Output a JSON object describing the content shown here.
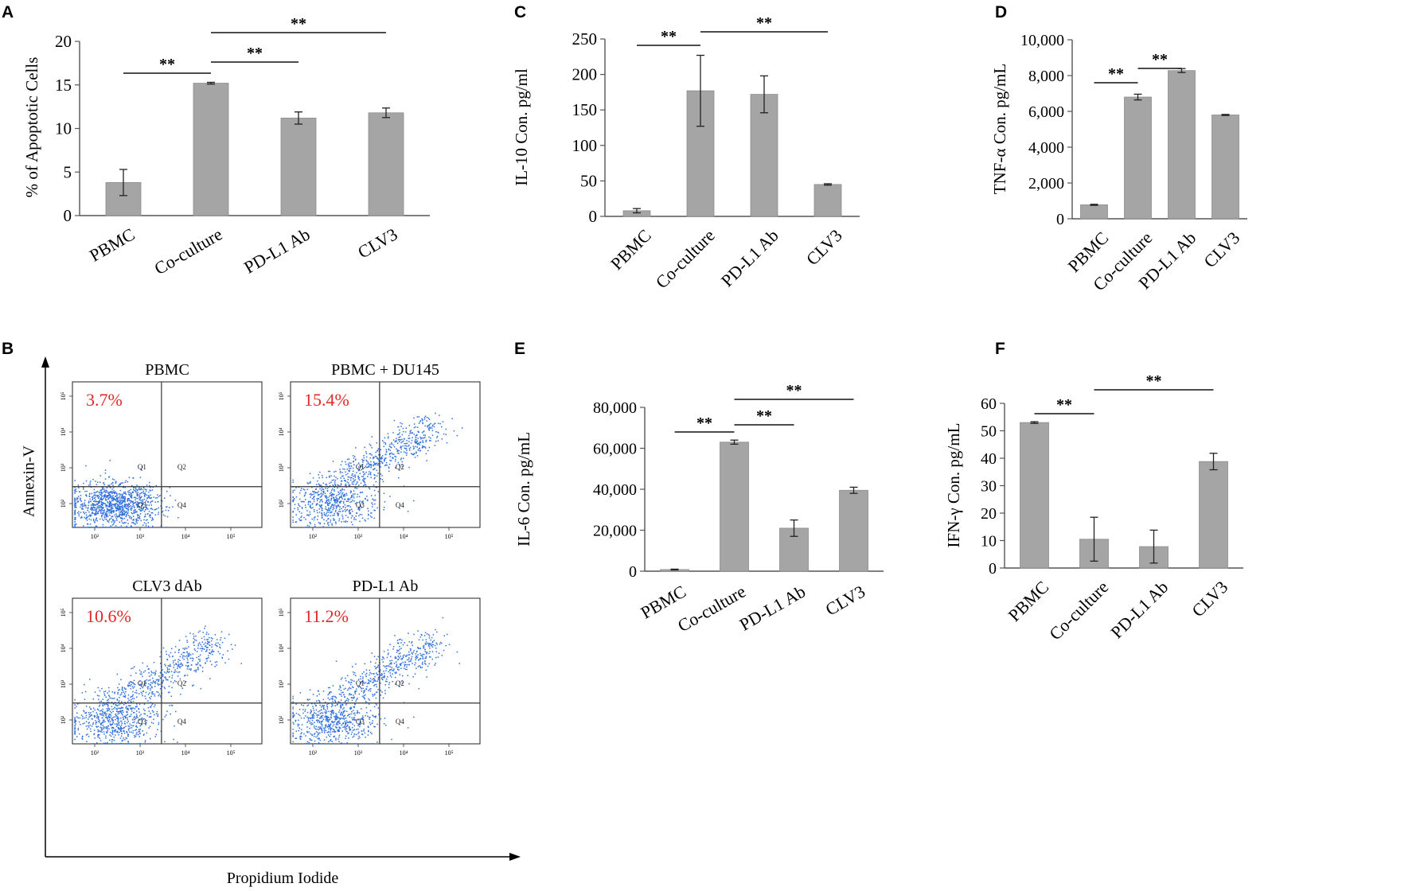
{
  "colors": {
    "bar": "#a6a5a6",
    "bar_edge": "#8e8d8e",
    "axis": "#555555",
    "dot": "#2f6fdc",
    "percent_text": "#e32727",
    "text": "#000000"
  },
  "chart_data": [
    {
      "panel": "A",
      "type": "bar",
      "categories": [
        "PBMC",
        "Co-culture",
        "PD-L1 Ab",
        "CLV3"
      ],
      "values": [
        3.8,
        15.2,
        11.2,
        11.8
      ],
      "errors": [
        1.5,
        0.1,
        0.7,
        0.55
      ],
      "ylabel": "% of Apoptotic Cells",
      "ylim": [
        0,
        20
      ],
      "yticks": [
        0,
        5,
        10,
        15,
        20
      ],
      "ytick_labels": [
        "0",
        "5",
        "10",
        "15",
        "20"
      ],
      "significance": [
        {
          "from": 0,
          "to": 1,
          "label": "**"
        },
        {
          "from": 1,
          "to": 2,
          "label": "**"
        },
        {
          "from": 1,
          "to": 3,
          "label": "**"
        }
      ]
    },
    {
      "panel": "C",
      "type": "bar",
      "categories": [
        "PBMC",
        "Co-culture",
        "PD-L1 Ab",
        "CLV3"
      ],
      "values": [
        8,
        177,
        172,
        45
      ],
      "errors": [
        3,
        50,
        26,
        1
      ],
      "ylabel": "IL-10 Con. pg/ml",
      "ylim": [
        0,
        250
      ],
      "yticks": [
        0,
        50,
        100,
        150,
        200,
        250
      ],
      "ytick_labels": [
        "0",
        "50",
        "100",
        "150",
        "200",
        "250"
      ],
      "significance": [
        {
          "from": 0,
          "to": 1,
          "label": "**"
        },
        {
          "from": 1,
          "to": 3,
          "label": "**"
        }
      ]
    },
    {
      "panel": "D",
      "type": "bar",
      "categories": [
        "PBMC",
        "Co-culture",
        "PD-L1 Ab",
        "CLV3"
      ],
      "values": [
        780,
        6800,
        8280,
        5800
      ],
      "errors": [
        30,
        160,
        110,
        30
      ],
      "ylabel": "TNF-α Con. pg/mL",
      "ylim": [
        0,
        10000
      ],
      "yticks": [
        0,
        2000,
        4000,
        6000,
        8000,
        10000
      ],
      "ytick_labels": [
        "0",
        "2,000",
        "4,000",
        "6,000",
        "8,000",
        "10,000"
      ],
      "significance": [
        {
          "from": 0,
          "to": 1,
          "label": "**"
        },
        {
          "from": 1,
          "to": 2,
          "label": "**"
        }
      ]
    },
    {
      "panel": "E",
      "type": "bar",
      "categories": [
        "PBMC",
        "Co-culture",
        "PD-L1 Ab",
        "CLV3"
      ],
      "values": [
        800,
        63000,
        21000,
        39500
      ],
      "errors": [
        200,
        1000,
        4000,
        1500
      ],
      "ylabel": "IL-6 Con. pg/mL",
      "ylim": [
        0,
        80000
      ],
      "yticks": [
        0,
        20000,
        40000,
        60000,
        80000
      ],
      "ytick_labels": [
        "0",
        "20,000",
        "40,000",
        "60,000",
        "80,000"
      ],
      "significance": [
        {
          "from": 0,
          "to": 1,
          "label": "**"
        },
        {
          "from": 1,
          "to": 2,
          "label": "**"
        },
        {
          "from": 1,
          "to": 3,
          "label": "**"
        }
      ]
    },
    {
      "panel": "F",
      "type": "bar",
      "categories": [
        "PBMC",
        "Co-culture",
        "PD-L1 Ab",
        "CLV3"
      ],
      "values": [
        53,
        10.5,
        7.8,
        38.8
      ],
      "errors": [
        0.3,
        8,
        6,
        3
      ],
      "ylabel": "IFN-γ Con. pg/mL",
      "ylim": [
        0,
        60
      ],
      "yticks": [
        0,
        10,
        20,
        30,
        40,
        50,
        60
      ],
      "ytick_labels": [
        "0",
        "10",
        "20",
        "30",
        "40",
        "50",
        "60"
      ],
      "significance": [
        {
          "from": 0,
          "to": 1,
          "label": "**"
        },
        {
          "from": 1,
          "to": 3,
          "label": "**"
        }
      ]
    }
  ],
  "flow_panel": {
    "panel": "B",
    "y_axis_label": "Annexin-V",
    "x_axis_label": "Propidium Iodide",
    "plots": [
      {
        "title": "PBMC",
        "percent": "3.7%",
        "q1": "Q1",
        "q2": "Q2",
        "q3": "Q3",
        "q4": "Q4"
      },
      {
        "title": "PBMC + DU145",
        "percent": "15.4%",
        "q1": "Q1",
        "q2": "Q2",
        "q3": "Q3",
        "q4": "Q4"
      },
      {
        "title": "CLV3 dAb",
        "percent": "10.6%",
        "q1": "Q1",
        "q2": "Q2",
        "q3": "Q3",
        "q4": "Q4"
      },
      {
        "title": "PD-L1 Ab",
        "percent": "11.2%",
        "q1": "Q1",
        "q2": "Q2",
        "q3": "Q3",
        "q4": "Q4"
      }
    ],
    "x_ticks": [
      "10²",
      "10³",
      "10⁴",
      "10⁵"
    ],
    "y_ticks": [
      "10²",
      "10³",
      "10⁴",
      "10⁵"
    ]
  }
}
